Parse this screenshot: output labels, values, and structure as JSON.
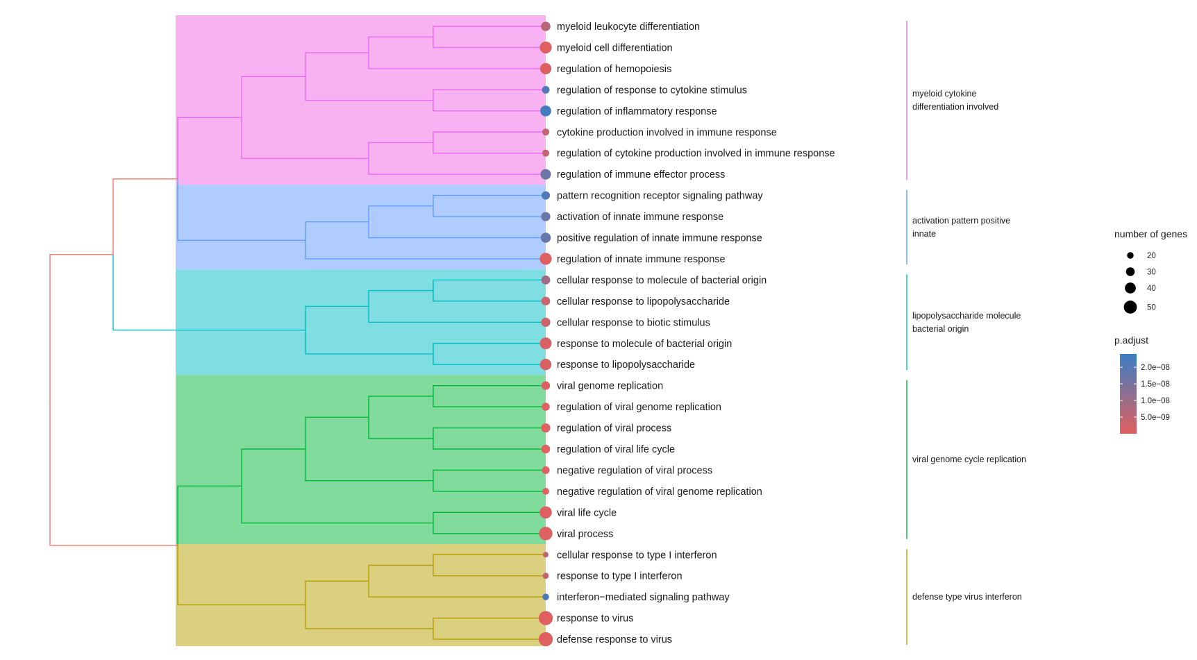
{
  "chart_data": {
    "type": "treeplot",
    "description_free": true,
    "terms": [
      {
        "label": "myeloid leukocyte differentiation",
        "count": 33,
        "padj": 6e-09
      },
      {
        "label": "myeloid cell differentiation",
        "count": 45,
        "padj": 2e-10
      },
      {
        "label": "regulation of hemopoiesis",
        "count": 42,
        "padj": 4e-10
      },
      {
        "label": "regulation of response to cytokine stimulus",
        "count": 25,
        "padj": 2.1e-08
      },
      {
        "label": "regulation of inflammatory response",
        "count": 40,
        "padj": 2.3e-08
      },
      {
        "label": "cytokine production involved in immune response",
        "count": 22,
        "padj": 4e-09
      },
      {
        "label": "regulation of cytokine production involved in immune response",
        "count": 22,
        "padj": 4e-09
      },
      {
        "label": "regulation of immune effector process",
        "count": 38,
        "padj": 1.7e-08
      },
      {
        "label": "pattern recognition receptor signaling pathway",
        "count": 28,
        "padj": 2.1e-08
      },
      {
        "label": "activation of innate immune response",
        "count": 32,
        "padj": 1.7e-08
      },
      {
        "label": "positive regulation of innate immune response",
        "count": 36,
        "padj": 1.8e-08
      },
      {
        "label": "regulation of innate immune response",
        "count": 45,
        "padj": 2e-10
      },
      {
        "label": "cellular response to molecule of bacterial origin",
        "count": 31,
        "padj": 9e-09
      },
      {
        "label": "cellular response to lipopolysaccharide",
        "count": 30,
        "padj": 3e-09
      },
      {
        "label": "cellular response to biotic stimulus",
        "count": 32,
        "padj": 3e-09
      },
      {
        "label": "response to molecule of bacterial origin",
        "count": 44,
        "padj": 1e-09
      },
      {
        "label": "response to lipopolysaccharide",
        "count": 42,
        "padj": 1e-09
      },
      {
        "label": "viral genome replication",
        "count": 29,
        "padj": 2e-10
      },
      {
        "label": "regulation of viral genome replication",
        "count": 26,
        "padj": 2e-10
      },
      {
        "label": "regulation of viral process",
        "count": 32,
        "padj": 2e-10
      },
      {
        "label": "regulation of viral life cycle",
        "count": 30,
        "padj": 2e-10
      },
      {
        "label": "negative regulation of viral process",
        "count": 25,
        "padj": 2e-10
      },
      {
        "label": "negative regulation of viral genome replication",
        "count": 21,
        "padj": 2e-10
      },
      {
        "label": "viral life cycle",
        "count": 46,
        "padj": 2e-10
      },
      {
        "label": "viral process",
        "count": 52,
        "padj": 2e-10
      },
      {
        "label": "cellular response to type I interferon",
        "count": 15,
        "padj": 5e-09
      },
      {
        "label": "response to type I interferon",
        "count": 18,
        "padj": 4e-09
      },
      {
        "label": "interferon−mediated signaling pathway",
        "count": 20,
        "padj": 2.2e-08
      },
      {
        "label": "response to virus",
        "count": 55,
        "padj": 1e-10
      },
      {
        "label": "defense response to virus",
        "count": 55,
        "padj": 1e-10
      }
    ],
    "clusters": [
      {
        "label_lines": [
          "myeloid cytokine",
          "differentiation involved"
        ],
        "color": "#E76BF3",
        "fill": "#F8B2F2",
        "start": 0,
        "end": 7
      },
      {
        "label_lines": [
          "activation pattern positive",
          "innate"
        ],
        "color": "#619CFF",
        "fill": "#B0CBFE",
        "start": 8,
        "end": 11
      },
      {
        "label_lines": [
          "lipopolysaccharide molecule",
          "bacterial origin"
        ],
        "color": "#00BFC4",
        "fill": "#80DEE2",
        "start": 12,
        "end": 16
      },
      {
        "label_lines": [
          "viral genome cycle replication"
        ],
        "color": "#00BA38",
        "fill": "#80DB9C",
        "start": 17,
        "end": 24
      },
      {
        "label_lines": [
          "defense type virus interferon"
        ],
        "color": "#B79F00",
        "fill": "#DBCF80",
        "start": 25,
        "end": 29
      }
    ],
    "tree": {
      "root_color": "#F8766D",
      "nodes": [
        {
          "id": "P01",
          "x": 624,
          "children": [
            0,
            1
          ],
          "color": "#E76BF3"
        },
        {
          "id": "P02",
          "x": 531,
          "children": [
            "P01",
            2
          ],
          "color": "#E76BF3"
        },
        {
          "id": "P03",
          "x": 624,
          "children": [
            3,
            4
          ],
          "color": "#E76BF3"
        },
        {
          "id": "P04",
          "x": 440,
          "children": [
            "P02",
            "P03"
          ],
          "color": "#E76BF3"
        },
        {
          "id": "P05",
          "x": 624,
          "children": [
            5,
            6
          ],
          "color": "#E76BF3"
        },
        {
          "id": "P06",
          "x": 531,
          "children": [
            "P05",
            7
          ],
          "color": "#E76BF3"
        },
        {
          "id": "P07",
          "x": 348,
          "children": [
            "P04",
            "P06"
          ],
          "color": "#E76BF3"
        },
        {
          "id": "B01",
          "x": 624,
          "children": [
            8,
            9
          ],
          "color": "#619CFF"
        },
        {
          "id": "B02",
          "x": 531,
          "children": [
            "B01",
            10
          ],
          "color": "#619CFF"
        },
        {
          "id": "B03",
          "x": 440,
          "children": [
            "B02",
            11
          ],
          "color": "#619CFF"
        },
        {
          "id": "PB",
          "x": 256,
          "children": [
            "P07",
            "B03"
          ],
          "color": "#E76BF3",
          "color2": "#619CFF"
        },
        {
          "id": "C01",
          "x": 624,
          "children": [
            12,
            13
          ],
          "color": "#00BFC4"
        },
        {
          "id": "C02",
          "x": 531,
          "children": [
            "C01",
            14
          ],
          "color": "#00BFC4"
        },
        {
          "id": "C03",
          "x": 624,
          "children": [
            15,
            16
          ],
          "color": "#00BFC4"
        },
        {
          "id": "C04",
          "x": 440,
          "children": [
            "C02",
            "C03"
          ],
          "color": "#00BFC4"
        },
        {
          "id": "TOPC",
          "x": 163,
          "children": [
            "PB",
            "C04"
          ],
          "color": "#F8766D",
          "color2": "#00BFC4"
        },
        {
          "id": "G01",
          "x": 624,
          "children": [
            17,
            18
          ],
          "color": "#00BA38"
        },
        {
          "id": "G02",
          "x": 624,
          "children": [
            19,
            20
          ],
          "color": "#00BA38"
        },
        {
          "id": "G03",
          "x": 531,
          "children": [
            "G01",
            "G02"
          ],
          "color": "#00BA38"
        },
        {
          "id": "G04",
          "x": 624,
          "children": [
            21,
            22
          ],
          "color": "#00BA38"
        },
        {
          "id": "G05",
          "x": 440,
          "children": [
            "G03",
            "G04"
          ],
          "color": "#00BA38"
        },
        {
          "id": "G06",
          "x": 624,
          "children": [
            23,
            24
          ],
          "color": "#00BA38"
        },
        {
          "id": "G07",
          "x": 348,
          "children": [
            "G05",
            "G06"
          ],
          "color": "#00BA38"
        },
        {
          "id": "Y01",
          "x": 624,
          "children": [
            25,
            26
          ],
          "color": "#B79F00"
        },
        {
          "id": "Y02",
          "x": 531,
          "children": [
            "Y01",
            27
          ],
          "color": "#B79F00"
        },
        {
          "id": "Y03",
          "x": 624,
          "children": [
            28,
            29
          ],
          "color": "#B79F00"
        },
        {
          "id": "Y04",
          "x": 440,
          "children": [
            "Y02",
            "Y03"
          ],
          "color": "#B79F00"
        },
        {
          "id": "GY",
          "x": 256,
          "children": [
            "G07",
            "Y04"
          ],
          "color": "#00BA38",
          "color2": "#B79F00"
        },
        {
          "id": "ROOT",
          "x": 72,
          "children": [
            "TOPC",
            "GY"
          ],
          "color": "#F8766D"
        }
      ]
    },
    "size_legend": {
      "title": "number of genes",
      "values": [
        20,
        30,
        40,
        50
      ]
    },
    "color_legend": {
      "title": "p.adjust",
      "ticks": [
        {
          "value": 2e-08,
          "label": "2.0e−08"
        },
        {
          "value": 1.5e-08,
          "label": "1.5e−08"
        },
        {
          "value": 1e-08,
          "label": "1.0e−08"
        },
        {
          "value": 5e-09,
          "label": "5.0e−09"
        }
      ],
      "range": [
        0,
        2.4e-08
      ],
      "low_color": "#E0605F",
      "high_color": "#3B7DC3"
    }
  }
}
